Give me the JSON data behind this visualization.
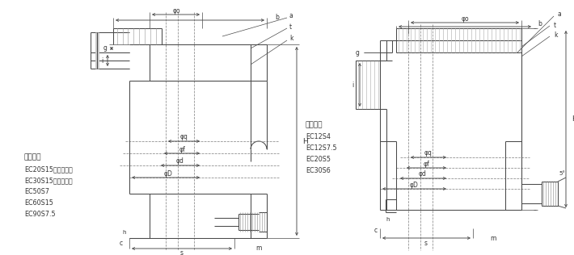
{
  "bg_color": "#ffffff",
  "lc": "#4a4a4a",
  "tc": "#333333",
  "fig_width": 7.1,
  "fig_height": 3.16,
  "dpi": 100,
  "left_title": "適応機種",
  "left_models": [
    "EC20S15（把手付）",
    "EC30S15（把手付）",
    "EC50S7",
    "EC60S15",
    "EC90S7.5"
  ],
  "right_title": "適応機種",
  "right_models": [
    "EC12S4",
    "EC12S7.5",
    "EC20S5",
    "EC30S6"
  ]
}
